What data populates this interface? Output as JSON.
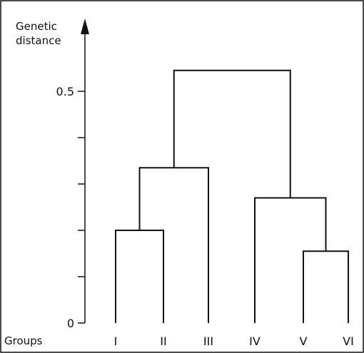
{
  "chart_data": {
    "type": "dendrogram",
    "y_axis": {
      "title_line1": "Genetic",
      "title_line2": "distance",
      "tick_labels": [
        {
          "value": 0,
          "label": "0"
        },
        {
          "value": 0.5,
          "label": "0.5"
        }
      ],
      "minor_ticks": [
        0.1,
        0.2,
        0.3,
        0.4
      ],
      "range": [
        0,
        0.58
      ]
    },
    "x_axis": {
      "title": "Groups"
    },
    "groups": [
      "I",
      "II",
      "III",
      "IV",
      "V",
      "VI"
    ],
    "merges": [
      {
        "left": "I",
        "right": "II",
        "height": 0.2
      },
      {
        "left": "V",
        "right": "VI",
        "height": 0.155
      },
      {
        "left": "I+II",
        "right": "III",
        "height": 0.335
      },
      {
        "left": "IV",
        "right": "V+VI",
        "height": 0.27
      },
      {
        "left": "I+II+III",
        "right": "IV+V+VI",
        "height": 0.545
      }
    ],
    "colors": {
      "ink": "#111111",
      "background": "#ffffff"
    }
  }
}
